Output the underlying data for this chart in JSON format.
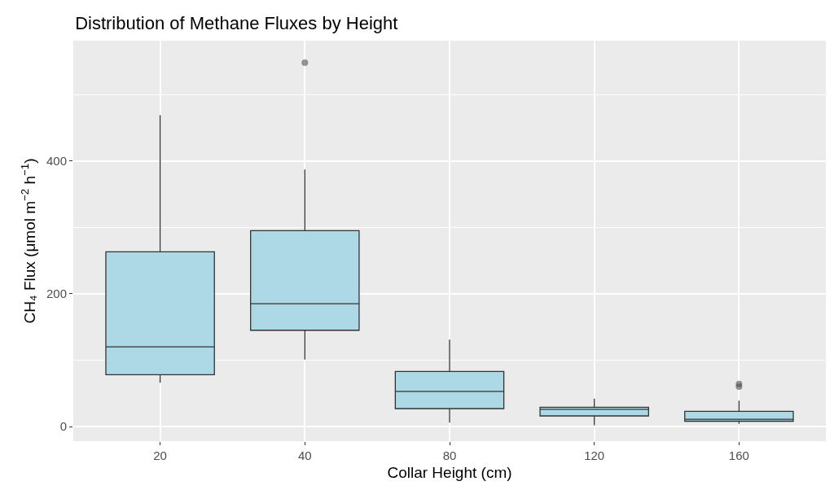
{
  "chart_data": {
    "type": "box",
    "title": "Distribution of Methane Fluxes by Height",
    "xlabel": "Collar Height (cm)",
    "ylabel": "CH₄ Flux (μmol m$^{−2}$ h$^{−1}$)",
    "categories": [
      "20",
      "40",
      "80",
      "120",
      "160"
    ],
    "series": [
      {
        "color": "#add8e6",
        "boxes": [
          {
            "low": 66,
            "q1": 78,
            "median": 120,
            "q3": 263,
            "high": 469
          },
          {
            "low": 101,
            "q1": 145,
            "median": 185,
            "q3": 295,
            "high": 387,
            "outliers": [
              548
            ]
          },
          {
            "low": 6,
            "q1": 27,
            "median": 53,
            "q3": 83,
            "high": 131
          },
          {
            "low": 2,
            "q1": 16,
            "median": 26,
            "q3": 29,
            "high": 42
          },
          {
            "low": 4,
            "q1": 8,
            "median": 11,
            "q3": 23,
            "high": 39,
            "outliers": [
              60,
              64
            ]
          }
        ]
      }
    ],
    "ylim": [
      -22,
      581
    ],
    "yticks": [
      0,
      200,
      400
    ],
    "grid": true
  }
}
